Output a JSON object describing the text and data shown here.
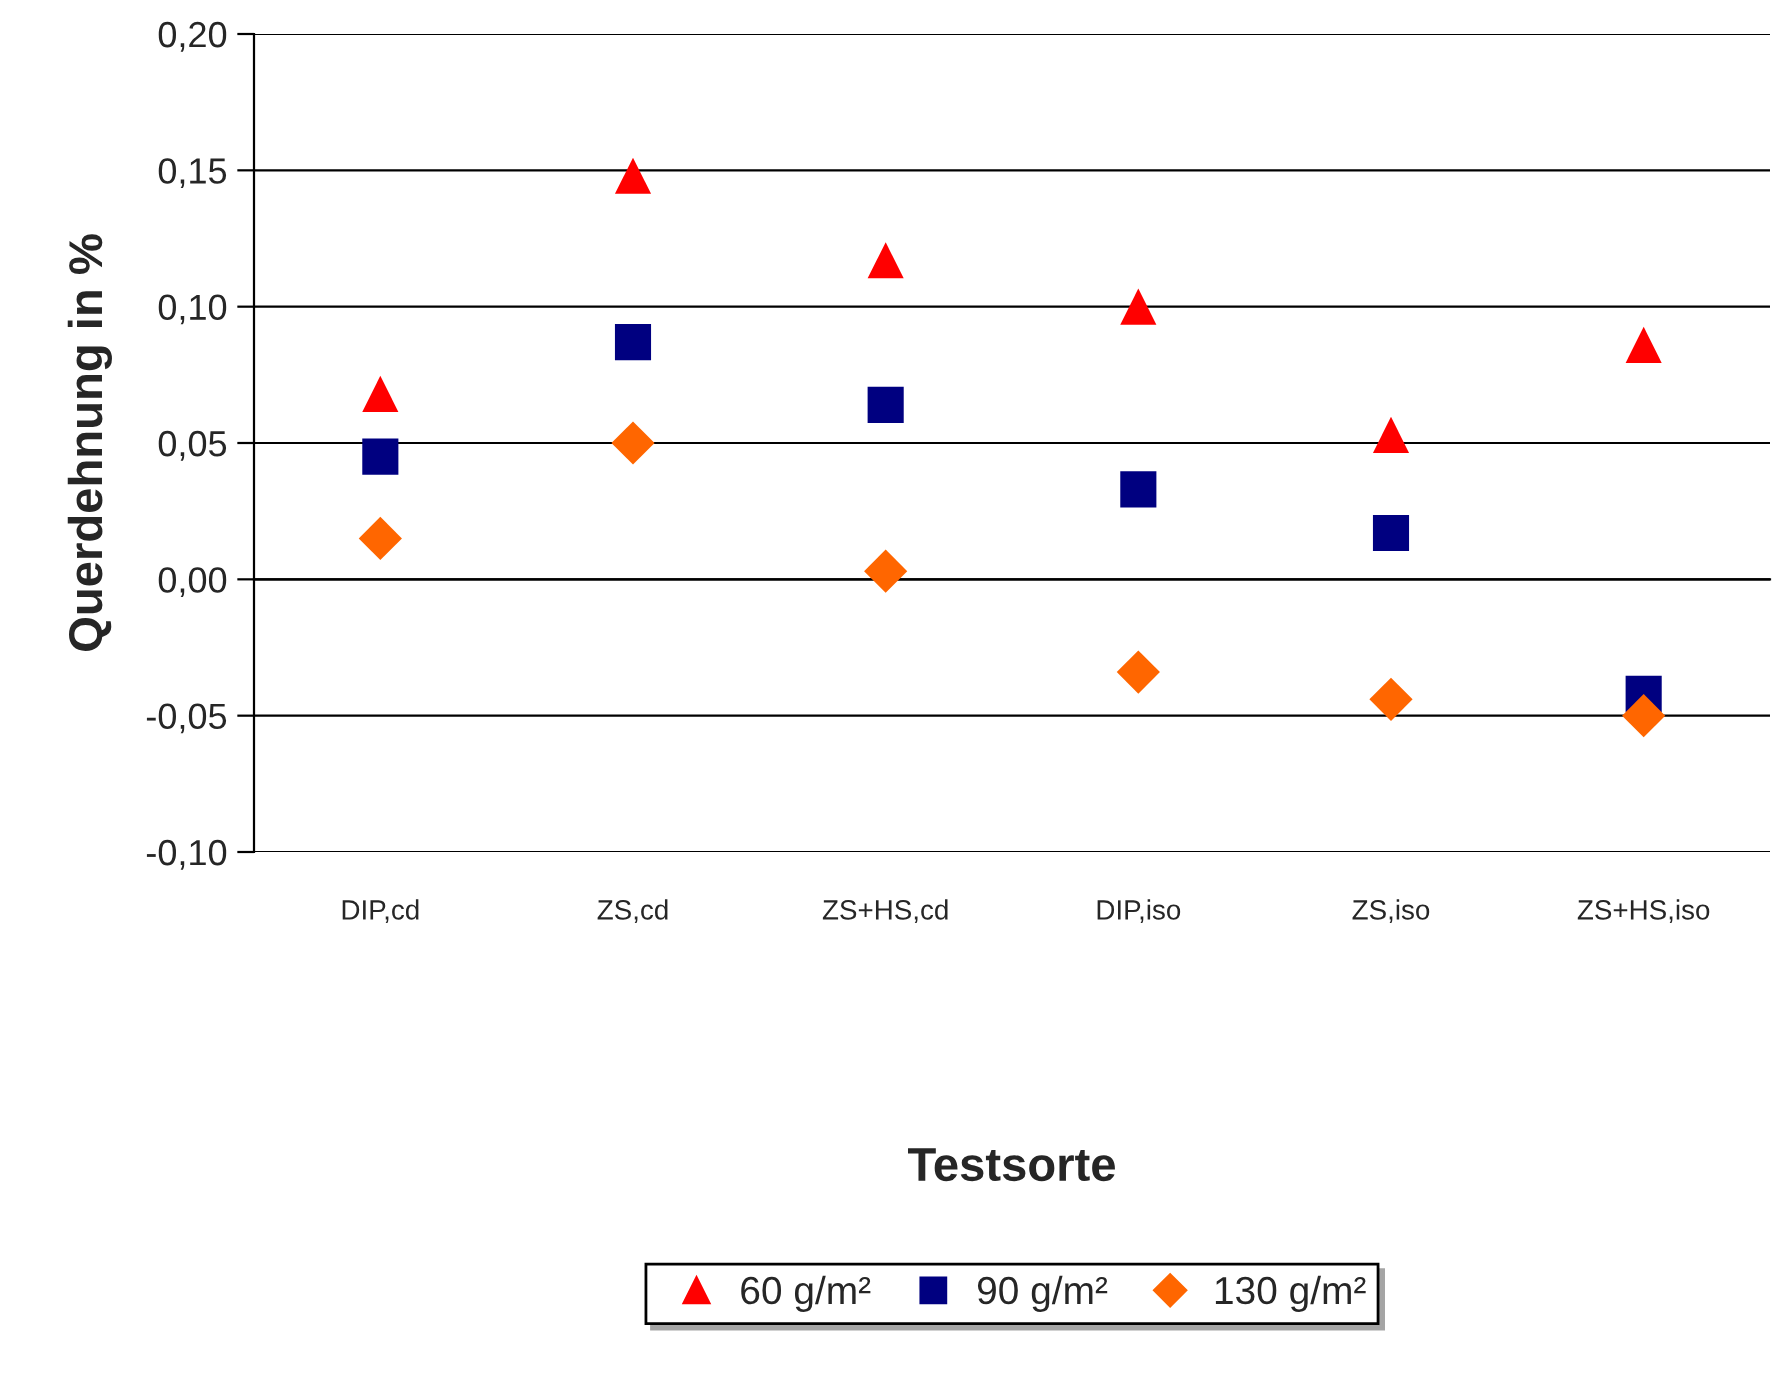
{
  "chart_data": {
    "type": "scatter",
    "xlabel": "Testsorte",
    "ylabel": "Querdehnung in %",
    "categories": [
      "DIP,cd",
      "ZS,cd",
      "ZS+HS,cd",
      "DIP,iso",
      "ZS,iso",
      "ZS+HS,iso"
    ],
    "series": [
      {
        "name": "60 g/m²",
        "color": "#ff0000",
        "marker": "triangle",
        "values": [
          0.068,
          0.148,
          0.117,
          0.1,
          0.053,
          0.086
        ]
      },
      {
        "name": "90 g/m²",
        "color": "#000080",
        "marker": "square",
        "values": [
          0.045,
          0.087,
          0.064,
          0.033,
          0.017,
          -0.042
        ]
      },
      {
        "name": "130 g/m²",
        "color": "#ff6600",
        "marker": "diamond",
        "values": [
          0.015,
          0.05,
          0.003,
          -0.034,
          -0.044,
          -0.05
        ]
      }
    ],
    "ylim": [
      -0.1,
      0.2
    ],
    "yticks": [
      {
        "value": -0.1,
        "label": "-0,10"
      },
      {
        "value": -0.05,
        "label": "-0,05"
      },
      {
        "value": 0,
        "label": "0,00"
      },
      {
        "value": 0.05,
        "label": "0,05"
      },
      {
        "value": 0.1,
        "label": "0,10"
      },
      {
        "value": 0.15,
        "label": "0,15"
      },
      {
        "value": 0.2,
        "label": "0,20"
      }
    ],
    "grid": "y",
    "legend": "bottom"
  }
}
